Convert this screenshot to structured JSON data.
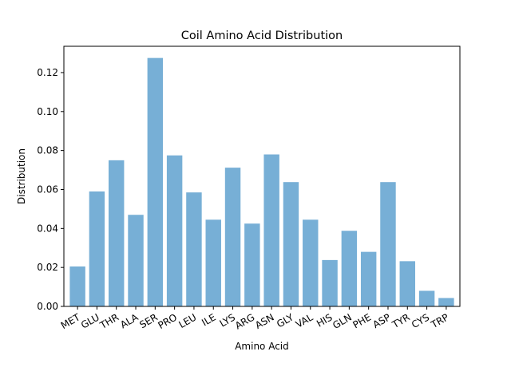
{
  "chart_data": {
    "type": "bar",
    "title": "Coil Amino Acid Distribution",
    "xlabel": "Amino Acid",
    "ylabel": "Distribution",
    "categories": [
      "MET",
      "GLU",
      "THR",
      "ALA",
      "SER",
      "PRO",
      "LEU",
      "ILE",
      "LYS",
      "ARG",
      "ASN",
      "GLY",
      "VAL",
      "HIS",
      "GLN",
      "PHE",
      "ASP",
      "TYR",
      "CYS",
      "TRP"
    ],
    "values": [
      0.0205,
      0.059,
      0.075,
      0.047,
      0.1275,
      0.0775,
      0.0585,
      0.0445,
      0.0712,
      0.0425,
      0.078,
      0.0638,
      0.0445,
      0.0238,
      0.0388,
      0.028,
      0.0638,
      0.0232,
      0.008,
      0.0043
    ],
    "ylim": [
      0,
      0.1335
    ],
    "yticks": [
      "0.00",
      "0.02",
      "0.04",
      "0.06",
      "0.08",
      "0.10",
      "0.12"
    ],
    "grid": false,
    "bar_color": "#77afd6"
  }
}
